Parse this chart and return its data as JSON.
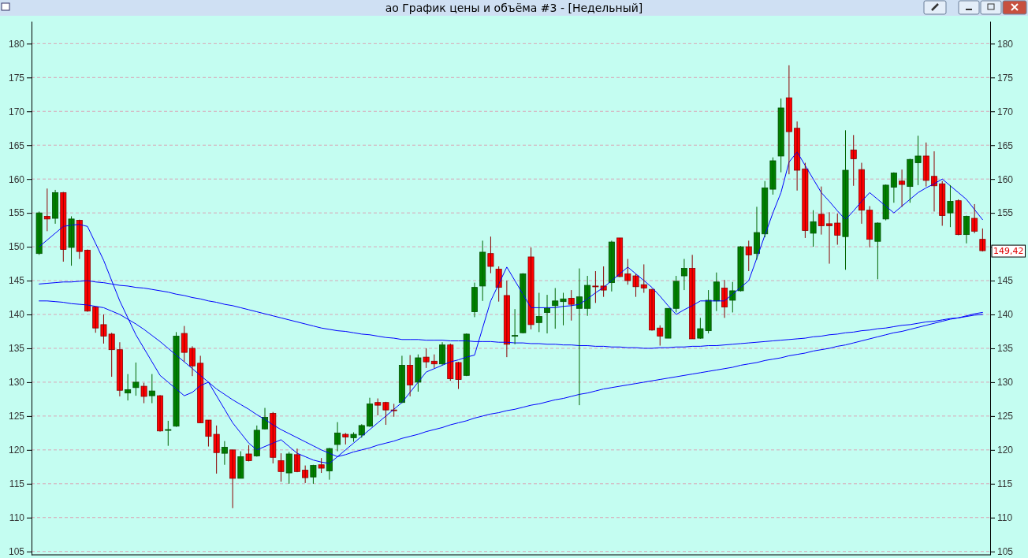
{
  "chart_data": {
    "type": "candlestick",
    "title": "ао График цены и объёма #3 - [Недельный]",
    "categories": [
      null,
      null,
      null,
      null,
      null,
      null,
      null,
      null,
      null,
      null,
      null,
      null,
      null,
      null,
      null,
      null,
      null,
      null,
      null,
      null,
      null,
      null,
      null,
      null,
      null,
      null,
      null,
      null,
      null,
      null,
      null,
      null,
      null,
      null,
      null,
      null,
      null,
      null,
      null,
      null,
      null,
      null,
      null,
      null,
      null,
      null,
      null,
      null,
      null,
      null,
      null,
      null,
      null,
      null,
      null,
      null,
      null,
      null,
      null,
      null,
      null,
      null,
      null,
      null,
      null,
      null,
      null,
      null,
      null,
      null,
      null,
      null,
      null,
      null,
      null,
      null,
      null,
      null,
      null,
      null,
      null,
      null,
      null,
      null,
      null,
      null,
      null,
      null,
      null,
      null,
      null,
      null,
      null,
      null,
      null,
      null,
      null,
      null,
      null,
      null,
      null,
      null,
      null,
      null,
      null,
      null,
      null,
      null,
      null,
      null,
      null,
      null,
      null,
      null,
      null,
      null,
      null,
      null
    ],
    "ohlc": [
      [
        149,
        155.2,
        148.8,
        155
      ],
      [
        154.5,
        158.6,
        152.3,
        154.1
      ],
      [
        154.2,
        158.4,
        153.4,
        158
      ],
      [
        158,
        158.1,
        147.8,
        149.6
      ],
      [
        149.9,
        154.5,
        147.2,
        154.1
      ],
      [
        153.9,
        154,
        148.2,
        149.3
      ],
      [
        149.5,
        149.6,
        140.4,
        140.5
      ],
      [
        141.1,
        141.1,
        137.3,
        138
      ],
      [
        138.5,
        140,
        135.7,
        136.8
      ],
      [
        137.1,
        137.3,
        130.8,
        134.8
      ],
      [
        134.8,
        135.9,
        127.9,
        128.8
      ],
      [
        128.4,
        131.2,
        127.3,
        128.9
      ],
      [
        129.2,
        132.9,
        128,
        130
      ],
      [
        129.4,
        129.9,
        126.9,
        127.9
      ],
      [
        128,
        131.2,
        126.9,
        128.7
      ],
      [
        128,
        128.1,
        122.7,
        122.8
      ],
      [
        123,
        124.3,
        120.6,
        123
      ],
      [
        123.5,
        137.4,
        123.4,
        136.8
      ],
      [
        137.2,
        138.3,
        133,
        134.4
      ],
      [
        135,
        135.3,
        130.9,
        132.4
      ],
      [
        132.8,
        133.9,
        124,
        124
      ],
      [
        124.4,
        124.4,
        120.5,
        122
      ],
      [
        122.3,
        123.6,
        116.5,
        119.6
      ],
      [
        119.5,
        121.3,
        117.8,
        120.4
      ],
      [
        120,
        120,
        111.4,
        115.8
      ],
      [
        115.8,
        119.8,
        115.8,
        119
      ],
      [
        119.4,
        120.7,
        118.3,
        118.4
      ],
      [
        119.1,
        123.6,
        119,
        122.9
      ],
      [
        123.1,
        126.2,
        123,
        124.8
      ],
      [
        125.4,
        125.6,
        118,
        118.9
      ],
      [
        118.4,
        119.5,
        115.3,
        116.8
      ],
      [
        116.6,
        119.7,
        115,
        119.4
      ],
      [
        119.3,
        120.2,
        116.7,
        116.8
      ],
      [
        117,
        117.7,
        115.1,
        115.9
      ],
      [
        116,
        117.8,
        115,
        117.7
      ],
      [
        117.8,
        118.8,
        116.6,
        117.3
      ],
      [
        116.9,
        120.3,
        115.6,
        120.2
      ],
      [
        120.8,
        124.1,
        119.8,
        122.5
      ],
      [
        122.3,
        122.5,
        120.8,
        121.9
      ],
      [
        121.8,
        122.6,
        121.2,
        122.3
      ],
      [
        122.2,
        123.8,
        121.8,
        123.6
      ],
      [
        123.5,
        127.7,
        123.4,
        126.8
      ],
      [
        127,
        127.6,
        125.1,
        126.6
      ],
      [
        127,
        127.1,
        123.7,
        125.9
      ],
      [
        125.9,
        126.8,
        124.9,
        125.8
      ],
      [
        127,
        133.9,
        126.9,
        132.5
      ],
      [
        132.5,
        134,
        127.9,
        129.6
      ],
      [
        130,
        134.1,
        128.6,
        133.6
      ],
      [
        133.7,
        135,
        132.1,
        133
      ],
      [
        133.1,
        134.1,
        132.1,
        132.7
      ],
      [
        132.7,
        135.9,
        132.5,
        135.5
      ],
      [
        135.5,
        135.7,
        130.2,
        130.5
      ],
      [
        132.9,
        133,
        129,
        130.4
      ],
      [
        131,
        137.2,
        130.9,
        137.1
      ],
      [
        140.4,
        144.7,
        139.6,
        144
      ],
      [
        144.2,
        150.9,
        142,
        149.2
      ],
      [
        149,
        151.5,
        146.1,
        147.1
      ],
      [
        146.7,
        147.1,
        141.9,
        144
      ],
      [
        142.8,
        145,
        133.7,
        135.6
      ],
      [
        136.8,
        140.8,
        135.6,
        136.9
      ],
      [
        137.3,
        146.1,
        137.2,
        146
      ],
      [
        148.5,
        149.9,
        137.8,
        138.5
      ],
      [
        138.8,
        143.2,
        137.4,
        139.7
      ],
      [
        140.3,
        142.9,
        137.2,
        140.9
      ],
      [
        141.3,
        143.9,
        137.9,
        142
      ],
      [
        141.9,
        143.2,
        138.4,
        142.3
      ],
      [
        142.4,
        143.6,
        139.1,
        141.5
      ],
      [
        140.9,
        146.8,
        126.6,
        142.6
      ],
      [
        140.9,
        145.7,
        139.8,
        144.3
      ],
      [
        144.2,
        146.4,
        141.7,
        144.1
      ],
      [
        144.2,
        147.1,
        142.6,
        143.6
      ],
      [
        144.7,
        150.9,
        143.4,
        150.7
      ],
      [
        151.3,
        151.3,
        145.5,
        145.6
      ],
      [
        146,
        148.2,
        144.4,
        145
      ],
      [
        145.7,
        146,
        142.6,
        144.1
      ],
      [
        144.4,
        147.4,
        143.2,
        143.9
      ],
      [
        143.7,
        143.8,
        137.6,
        137.7
      ],
      [
        138,
        138.4,
        135.4,
        136.8
      ],
      [
        136.5,
        140.9,
        136.5,
        140.9
      ],
      [
        140.9,
        145.7,
        140.3,
        144.9
      ],
      [
        145.7,
        148.2,
        143.6,
        146.8
      ],
      [
        146.8,
        148.8,
        136.4,
        136.4
      ],
      [
        136.5,
        139.5,
        136.4,
        137.9
      ],
      [
        137.6,
        143.6,
        137.2,
        142.1
      ],
      [
        142,
        146.2,
        140.5,
        144.8
      ],
      [
        143.9,
        145.1,
        139.5,
        141.1
      ],
      [
        142.1,
        144.8,
        140.3,
        143.5
      ],
      [
        143.5,
        150.1,
        143.4,
        150
      ],
      [
        150,
        150.9,
        146.4,
        148.8
      ],
      [
        149,
        155.9,
        148.1,
        152.1
      ],
      [
        151.9,
        159.7,
        151.4,
        158.7
      ],
      [
        158.5,
        163.2,
        157.7,
        162.7
      ],
      [
        163.4,
        171.9,
        161,
        170.5
      ],
      [
        172,
        176.8,
        160.7,
        167
      ],
      [
        167.5,
        168.5,
        158.3,
        161.3
      ],
      [
        161.5,
        162.4,
        151.3,
        152.4
      ],
      [
        152,
        155.4,
        150,
        153.7
      ],
      [
        154.8,
        158.9,
        151.8,
        153.1
      ],
      [
        153.4,
        155.1,
        147.5,
        153.1
      ],
      [
        153.5,
        154.9,
        150.3,
        151.7
      ],
      [
        151.5,
        167.2,
        146.6,
        161.3
      ],
      [
        164.3,
        166.5,
        159,
        163
      ],
      [
        161.4,
        162.4,
        153.4,
        155.4
      ],
      [
        155.4,
        156,
        149.9,
        151.1
      ],
      [
        150.8,
        153.6,
        145.2,
        153.5
      ],
      [
        154.1,
        159.2,
        153.9,
        159.1
      ],
      [
        158.8,
        161,
        156.5,
        160.9
      ],
      [
        159.7,
        161.4,
        155.9,
        159.2
      ],
      [
        158.9,
        163,
        156.5,
        162.9
      ],
      [
        162.4,
        166.4,
        159.1,
        163.4
      ],
      [
        163.4,
        165.4,
        158.9,
        159.8
      ],
      [
        160.4,
        164.1,
        155.2,
        159
      ],
      [
        159.3,
        159.7,
        153.1,
        154.6
      ],
      [
        155,
        159.1,
        152.9,
        156.7
      ],
      [
        156.8,
        157,
        151.7,
        151.8
      ],
      [
        151.8,
        154.6,
        150.5,
        154.5
      ],
      [
        154.2,
        156.3,
        152,
        152.3
      ],
      [
        151.1,
        152.7,
        149.3,
        149.42
      ]
    ],
    "series": [
      {
        "type": "line",
        "color": "#0000ff",
        "values": [
          144.5,
          144.6,
          144.7,
          144.8,
          144.8,
          144.9,
          145,
          144.8,
          144.7,
          144.5,
          144.3,
          144.2,
          144,
          143.9,
          143.7,
          143.5,
          143.3,
          143,
          142.8,
          142.5,
          142.3,
          142,
          141.8,
          141.5,
          141.3,
          141,
          140.7,
          140.4,
          140.1,
          139.8,
          139.5,
          139.2,
          138.9,
          138.6,
          138.3,
          138,
          137.8,
          137.6,
          137.5,
          137.3,
          137.1,
          137,
          136.8,
          136.6,
          136.5,
          136.3,
          136.3,
          136.3,
          136.2,
          136.2,
          136.2,
          136.1,
          136.1,
          136.1,
          136,
          136,
          136,
          135.9,
          135.9,
          135.8,
          135.8,
          135.7,
          135.7,
          135.6,
          135.6,
          135.5,
          135.5,
          135.4,
          135.4,
          135.3,
          135.3,
          135.2,
          135.2,
          135.1,
          135.1,
          135,
          135,
          135.1,
          135.1,
          135.2,
          135.2,
          135.3,
          135.3,
          135.4,
          135.4,
          135.5,
          135.6,
          135.7,
          135.8,
          135.9,
          136,
          136.1,
          136.2,
          136.3,
          136.4,
          136.5,
          136.7,
          136.8,
          137,
          137.1,
          137.3,
          137.4,
          137.6,
          137.7,
          137.9,
          138,
          138.2,
          138.4,
          138.5,
          138.7,
          138.9,
          139,
          139.2,
          139.4,
          139.5,
          139.7,
          139.9,
          140
        ]
      },
      {
        "type": "line",
        "color": "#0000ff",
        "values": [
          142,
          142,
          141.9,
          141.8,
          141.6,
          141.5,
          141.4,
          141.2,
          141,
          140.5,
          140,
          139.3,
          138.6,
          137.8,
          136.9,
          136,
          135,
          134,
          133,
          132,
          131,
          130,
          129,
          128.2,
          127.4,
          126.7,
          126,
          125.2,
          124.5,
          123.7,
          123,
          122.4,
          121.8,
          121.2,
          120.6,
          120,
          119.5,
          119,
          119.3,
          119.7,
          120,
          120.3,
          120.7,
          121,
          121.3,
          121.7,
          122,
          122.3,
          122.7,
          123,
          123.3,
          123.7,
          124,
          124.3,
          124.7,
          125,
          125.3,
          125.5,
          125.8,
          126,
          126.3,
          126.6,
          126.8,
          127.1,
          127.4,
          127.6,
          127.9,
          128.2,
          128.4,
          128.7,
          129,
          129.2,
          129.4,
          129.6,
          129.8,
          130,
          130.2,
          130.4,
          130.6,
          130.8,
          131,
          131.2,
          131.4,
          131.6,
          131.8,
          132,
          132.2,
          132.5,
          132.7,
          132.9,
          133.2,
          133.4,
          133.6,
          133.9,
          134.1,
          134.3,
          134.6,
          134.8,
          135,
          135.3,
          135.5,
          135.8,
          136.1,
          136.4,
          136.7,
          137,
          137.3,
          137.5,
          137.8,
          138.1,
          138.4,
          138.7,
          139,
          139.3,
          139.5,
          139.8,
          140.1,
          140.3
        ]
      },
      {
        "type": "line",
        "color": "#0000ff",
        "values": [
          150,
          151,
          152,
          153,
          153.2,
          153.3,
          153,
          150.5,
          148,
          145,
          142,
          139.5,
          137,
          135,
          133,
          131,
          130,
          129,
          128,
          128.5,
          129.5,
          130,
          128,
          126,
          124,
          122.5,
          121,
          120,
          120.5,
          121,
          121.5,
          120.5,
          119.5,
          119,
          118.5,
          118.2,
          118,
          119,
          120,
          121,
          122,
          123,
          124,
          125,
          126,
          127,
          128.5,
          130,
          131.5,
          132,
          132.5,
          133,
          133.3,
          133.7,
          134,
          138,
          142,
          144.5,
          147,
          145,
          143,
          141,
          141,
          141,
          141,
          141.2,
          141.3,
          141.5,
          142.3,
          143.2,
          144,
          145,
          146,
          147,
          146,
          145,
          144,
          142.7,
          141.3,
          140,
          140.7,
          141.3,
          142,
          142,
          142,
          142,
          143,
          144,
          145,
          148.3,
          151.7,
          155,
          158,
          162.5,
          164,
          162,
          160,
          158,
          156.7,
          155.3,
          154,
          155.3,
          156.7,
          158,
          157,
          156,
          155,
          156,
          157,
          158,
          158.7,
          159.3,
          160,
          159,
          158,
          157,
          155.5,
          154
        ]
      }
    ],
    "ylim": [
      104.5,
      183.3
    ],
    "yticks": [
      105,
      110,
      115,
      120,
      125,
      130,
      135,
      140,
      145,
      150,
      155,
      160,
      165,
      170,
      175,
      180
    ],
    "y2lim": [
      104.5,
      183.3
    ],
    "y2ticks": [
      105,
      110,
      115,
      120,
      125,
      130,
      135,
      140,
      145,
      {
        "value": 150,
        "label": null
      },
      155,
      160,
      165,
      170,
      175,
      180
    ],
    "grid": "y",
    "marker": "none",
    "line_style": "solid",
    "annotations": [
      "149,42"
    ]
  }
}
